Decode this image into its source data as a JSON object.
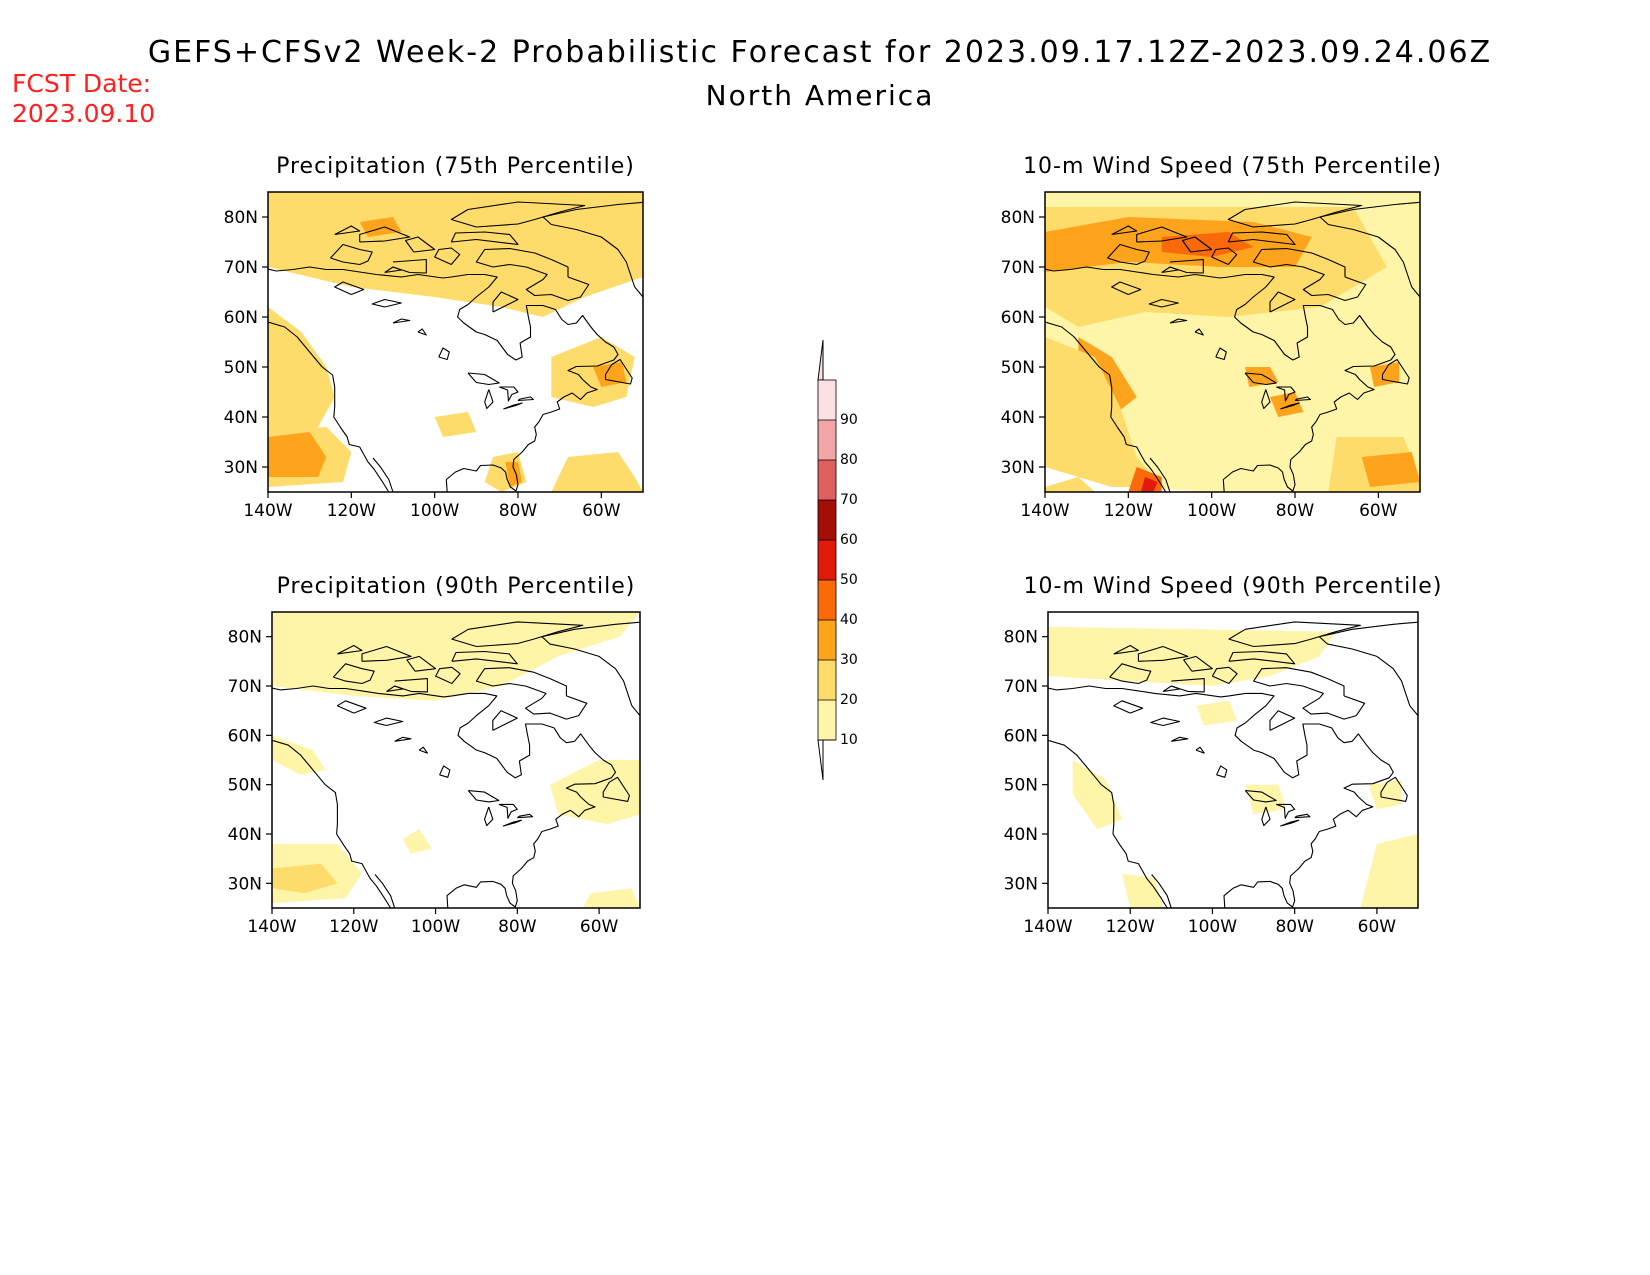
{
  "header": {
    "title": "GEFS+CFSv2 Week-2 Probabilistic Forecast for 2023.09.17.12Z-2023.09.24.06Z",
    "region": "North America",
    "fcst_label": "FCST Date:",
    "fcst_date": "2023.09.10"
  },
  "colors": {
    "fcst_text": "#ff2020",
    "bins": [
      "#fff5a8",
      "#fddc6b",
      "#fea41c",
      "#fb6a0a",
      "#e21a0a",
      "#a50e06",
      "#e0605f",
      "#f2a5a6",
      "#fde0e3"
    ]
  },
  "axes": {
    "lat_ticks": [
      "30N",
      "40N",
      "50N",
      "60N",
      "70N",
      "80N"
    ],
    "lon_ticks": [
      "140W",
      "120W",
      "100W",
      "80W",
      "60W"
    ]
  },
  "panels": [
    {
      "id": "precip-75",
      "title": "Precipitation (75th Percentile)",
      "intensity": "high",
      "variable": "precipitation"
    },
    {
      "id": "wind-75",
      "title": "10-m Wind Speed (75th Percentile)",
      "intensity": "high",
      "variable": "wind"
    },
    {
      "id": "precip-90",
      "title": "Precipitation (90th Percentile)",
      "intensity": "low",
      "variable": "precipitation"
    },
    {
      "id": "wind-90",
      "title": "10-m Wind Speed (90th Percentile)",
      "intensity": "low",
      "variable": "wind"
    }
  ],
  "colorbar": {
    "labels": [
      "10",
      "20",
      "30",
      "40",
      "50",
      "60",
      "70",
      "80",
      "90"
    ]
  }
}
